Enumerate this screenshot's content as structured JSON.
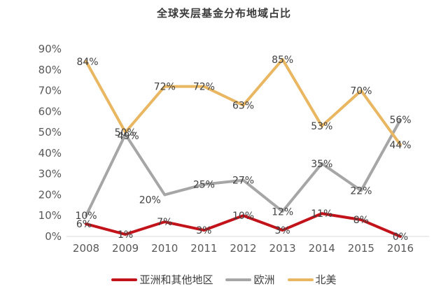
{
  "title": "全球夹层基金分布地域占比",
  "chart_data": {
    "type": "line",
    "title": "全球夹层基金分布地域占比",
    "categories": [
      "2008",
      "2009",
      "2010",
      "2011",
      "2012",
      "2013",
      "2014",
      "2015",
      "2016"
    ],
    "series": [
      {
        "name": "亚洲和其他地区",
        "color": "#c2131b",
        "values": [
          6,
          1,
          7,
          3,
          10,
          3,
          11,
          8,
          0
        ],
        "labels": [
          "6%",
          "1%",
          "7%",
          "3%",
          "10%",
          "3%",
          "11%",
          "8%",
          "0%"
        ]
      },
      {
        "name": "欧洲",
        "color": "#a6a6a6",
        "values": [
          10,
          49,
          20,
          25,
          27,
          12,
          35,
          22,
          56
        ],
        "labels": [
          "10%",
          "49%",
          "20%",
          "25%",
          "27%",
          "12%",
          "35%",
          "22%",
          "56%"
        ]
      },
      {
        "name": "北美",
        "color": "#e9b762",
        "values": [
          84,
          50,
          72,
          72,
          63,
          85,
          53,
          70,
          44
        ],
        "labels": [
          "84%",
          "50%",
          "72%",
          "72%",
          "63%",
          "85%",
          "53%",
          "70%",
          "44%"
        ]
      }
    ],
    "xlabel": "",
    "ylabel": "",
    "ylim": [
      0,
      90
    ],
    "ytick_step": 10,
    "yticks": [
      "0%",
      "10%",
      "20%",
      "30%",
      "40%",
      "50%",
      "60%",
      "70%",
      "80%",
      "90%"
    ],
    "grid": false,
    "legend_position": "bottom",
    "axis_line_color": "#d9d9d9",
    "axis_text_color": "#595959",
    "data_label_color": "#404040"
  }
}
